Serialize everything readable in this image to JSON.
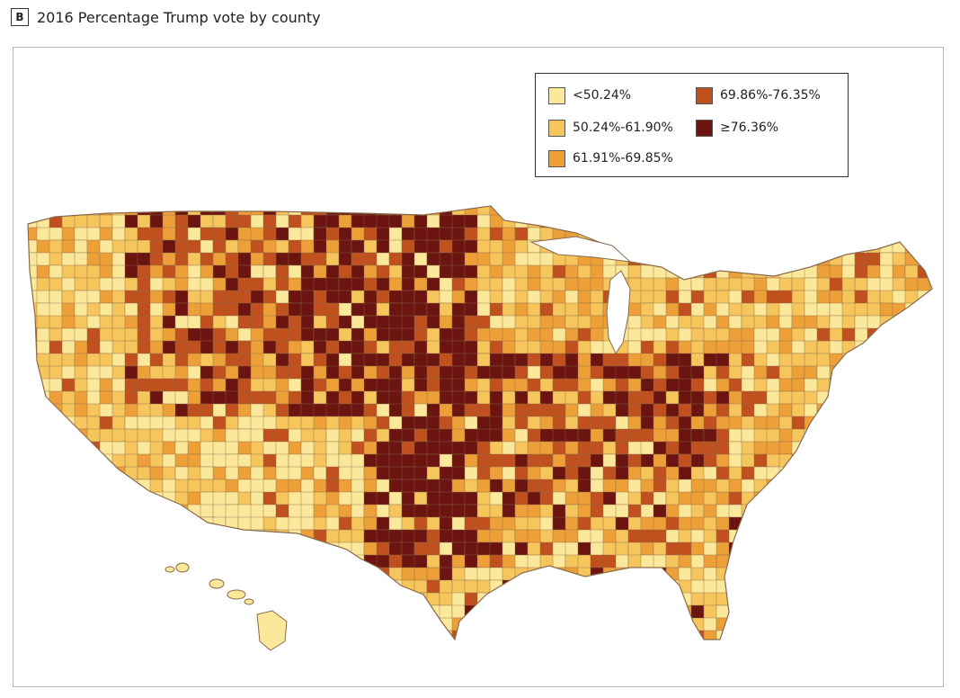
{
  "header": {
    "panel_label": "B",
    "title": "2016 Percentage Trump vote by county"
  },
  "legend": {
    "items": [
      {
        "label": "<50.24%",
        "color": "#fbe89a"
      },
      {
        "label": "50.24%-61.90%",
        "color": "#f6c55c"
      },
      {
        "label": "61.91%-69.85%",
        "color": "#eea038"
      },
      {
        "label": "69.86%-76.35%",
        "color": "#c0511e"
      },
      {
        "label": "≥76.36%",
        "color": "#6b1410"
      }
    ]
  },
  "map": {
    "no_data_color": "#ffffff",
    "border_color": "#8a6a4a"
  }
}
